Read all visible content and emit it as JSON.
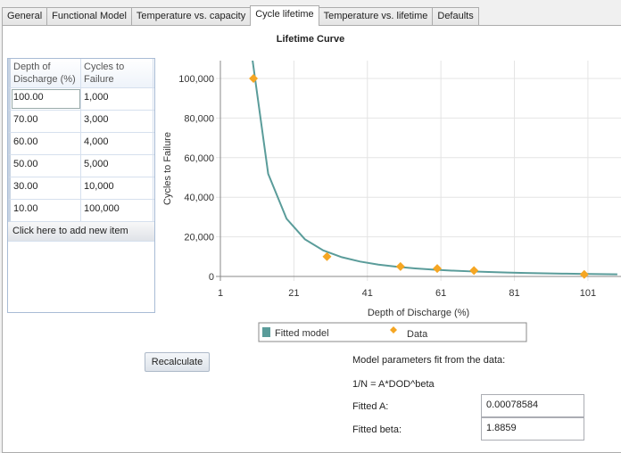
{
  "tabs": [
    "General",
    "Functional Model",
    "Temperature vs. capacity",
    "Cycle lifetime",
    "Temperature vs. lifetime",
    "Defaults"
  ],
  "active_tab": "Cycle lifetime",
  "table": {
    "headers": [
      "Depth of Discharge (%)",
      "Cycles to Failure"
    ],
    "rows": [
      [
        "100.00",
        "1,000"
      ],
      [
        "70.00",
        "3,000"
      ],
      [
        "60.00",
        "4,000"
      ],
      [
        "50.00",
        "5,000"
      ],
      [
        "30.00",
        "10,000"
      ],
      [
        "10.00",
        "100,000"
      ]
    ],
    "add_item": "Click here to add new item"
  },
  "chart_data": {
    "type": "line",
    "title": "Lifetime Curve",
    "xlabel": "Depth of Discharge (%)",
    "ylabel": "Cycles to Failure",
    "xlim": [
      1,
      110
    ],
    "ylim": [
      0,
      109000
    ],
    "xticks": [
      "1",
      "21",
      "41",
      "61",
      "81",
      "101"
    ],
    "yticks": [
      "0",
      "20,000",
      "40,000",
      "60,000",
      "80,000",
      "100,000"
    ],
    "grid": true,
    "legend": "bottom",
    "series": [
      {
        "name": "Fitted model",
        "kind": "line",
        "color": "#5a9c9a",
        "formula": "1/N = A*DOD^beta"
      },
      {
        "name": "Data",
        "kind": "scatter",
        "color": "#f5a623",
        "x": [
          100,
          70,
          60,
          50,
          30,
          10
        ],
        "y": [
          1000,
          3000,
          4000,
          5000,
          10000,
          100000
        ]
      }
    ]
  },
  "recalculate": "Recalculate",
  "model": {
    "heading": "Model parameters fit from the data:",
    "equation": "1/N = A*DOD^beta",
    "a_label": "Fitted A:",
    "a_value": "0.00078584",
    "beta_label": "Fitted beta:",
    "beta_value": "1.8859"
  }
}
